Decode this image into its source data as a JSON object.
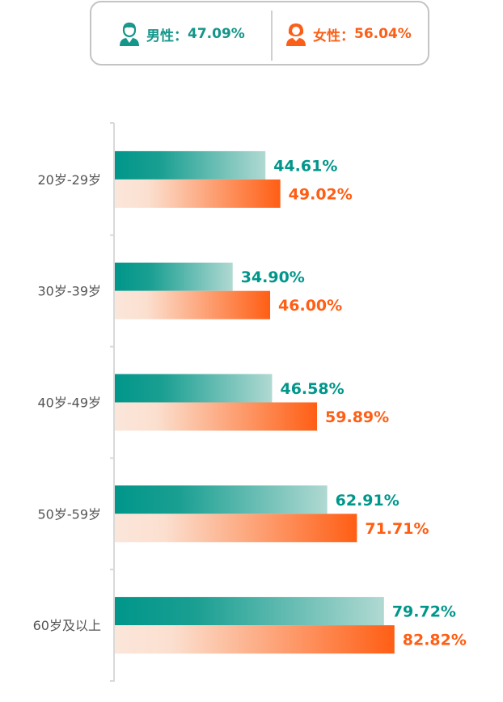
{
  "legend": {
    "male": {
      "label": "男性：",
      "value": "47.09%",
      "icon": "male-user-icon"
    },
    "female": {
      "label": "女性：",
      "value": "56.04%",
      "icon": "female-user-icon"
    }
  },
  "colors": {
    "male": "#00968a",
    "female": "#ff5e14",
    "male_light": "#a9d6cf",
    "female_light": "#fbe6da",
    "axis": "#d9d9d9",
    "text": "#555555"
  },
  "chart_data": {
    "type": "bar",
    "orientation": "horizontal",
    "categories": [
      "20岁-29岁",
      "30岁-39岁",
      "40岁-49岁",
      "50岁-59岁",
      "60岁及以上"
    ],
    "series": [
      {
        "name": "男性",
        "values": [
          44.61,
          34.9,
          46.58,
          62.91,
          79.72
        ],
        "labels": [
          "44.61%",
          "34.90%",
          "46.58%",
          "62.91%",
          "79.72%"
        ]
      },
      {
        "name": "女性",
        "values": [
          49.02,
          46.0,
          59.89,
          71.71,
          82.82
        ],
        "labels": [
          "49.02%",
          "46.00%",
          "59.89%",
          "71.71%",
          "82.82%"
        ]
      }
    ],
    "xlim": [
      0,
      100
    ],
    "grid": false,
    "legend_position": "top"
  }
}
